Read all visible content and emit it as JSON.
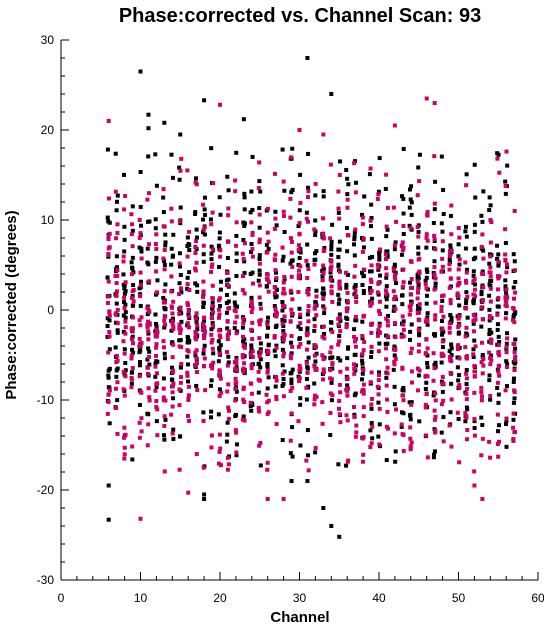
{
  "chart_data": {
    "type": "scatter",
    "title": "Phase:corrected vs. Channel Scan: 93",
    "xlabel": "Channel",
    "ylabel": "Phase:corrected (degrees)",
    "xlim": [
      0,
      60
    ],
    "ylim": [
      -30,
      30
    ],
    "xticks": [
      0,
      10,
      20,
      30,
      40,
      50,
      60
    ],
    "yticks": [
      -30,
      -20,
      -10,
      0,
      10,
      20,
      30
    ],
    "x_minor_step": 2,
    "y_minor_step": 2,
    "grid": false,
    "legend": "none",
    "channels": [
      6,
      7,
      8,
      9,
      10,
      11,
      12,
      13,
      14,
      15,
      16,
      17,
      18,
      19,
      20,
      21,
      22,
      23,
      24,
      25,
      26,
      27,
      28,
      29,
      30,
      31,
      32,
      33,
      34,
      35,
      36,
      37,
      38,
      39,
      40,
      41,
      42,
      43,
      44,
      45,
      46,
      47,
      48,
      49,
      50,
      51,
      52,
      53,
      54,
      55,
      56,
      57
    ],
    "series": [
      {
        "color": "#000000",
        "points_per_channel": 22,
        "y_center": 0,
        "y_spread": 7.5,
        "outliers": [
          [
            6,
            -23.3
          ],
          [
            6,
            -19.5
          ],
          [
            10,
            26.5
          ],
          [
            11,
            21.7
          ],
          [
            18,
            23.3
          ],
          [
            18,
            -20.5
          ],
          [
            18,
            -21
          ],
          [
            23,
            21.2
          ],
          [
            31,
            28
          ],
          [
            31,
            -19
          ],
          [
            33,
            -22
          ],
          [
            34,
            24
          ],
          [
            34,
            -24
          ],
          [
            35,
            -25.2
          ],
          [
            29,
            -19
          ],
          [
            11,
            20.2
          ],
          [
            13,
            20.8
          ],
          [
            15,
            19.5
          ]
        ]
      },
      {
        "color": "#cc0066",
        "points_per_channel": 22,
        "y_center": -1.5,
        "y_spread": 7.5,
        "outliers": [
          [
            6,
            21
          ],
          [
            10,
            -23.2
          ],
          [
            20,
            22.8
          ],
          [
            46,
            23.5
          ],
          [
            47,
            23
          ],
          [
            42,
            20.5
          ],
          [
            52,
            -19.5
          ],
          [
            53,
            -21
          ],
          [
            16,
            -20.3
          ],
          [
            26,
            -21
          ],
          [
            28,
            -21
          ],
          [
            30,
            20
          ],
          [
            33,
            19.5
          ]
        ]
      }
    ]
  }
}
